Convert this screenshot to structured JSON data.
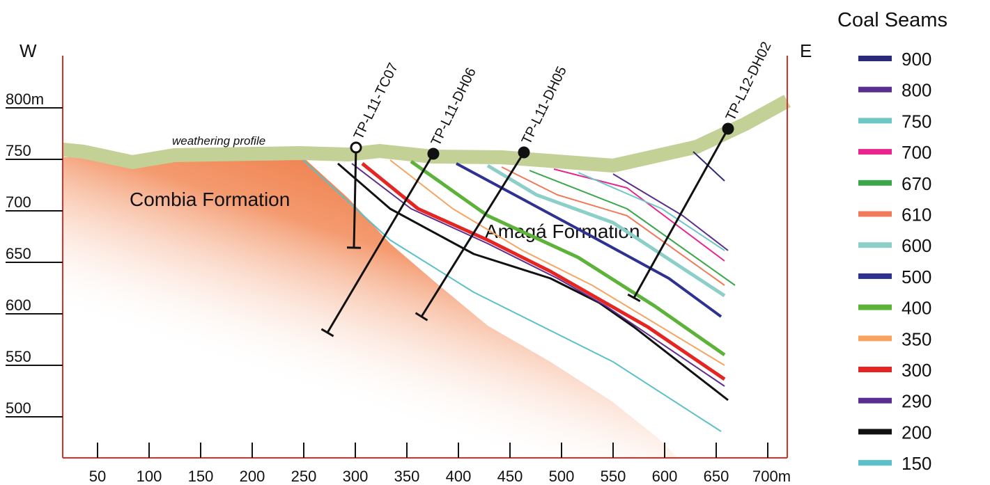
{
  "header": {
    "title": "Coal Seams"
  },
  "legend": [
    {
      "label": "900",
      "color": "#2b2a78"
    },
    {
      "label": "800",
      "color": "#5a2d91"
    },
    {
      "label": "750",
      "color": "#6ec6c6"
    },
    {
      "label": "700",
      "color": "#e8258f"
    },
    {
      "label": "670",
      "color": "#3aa74b"
    },
    {
      "label": "610",
      "color": "#f07a5a"
    },
    {
      "label": "600",
      "color": "#8ccfc8"
    },
    {
      "label": "500",
      "color": "#2e3192"
    },
    {
      "label": "400",
      "color": "#5db33a"
    },
    {
      "label": "350",
      "color": "#f7a462"
    },
    {
      "label": "300",
      "color": "#e52521"
    },
    {
      "label": "290",
      "color": "#5b2d8e"
    },
    {
      "label": "200",
      "color": "#111111"
    },
    {
      "label": "150",
      "color": "#5bc0c8"
    }
  ],
  "axes": {
    "west": "W",
    "east": "E",
    "x_ticks": [
      "50",
      "100",
      "150",
      "200",
      "250",
      "300",
      "350",
      "400",
      "450",
      "500",
      "550",
      "600",
      "650",
      "700m"
    ],
    "y_ticks": [
      "800m",
      "750",
      "700",
      "650",
      "600",
      "550",
      "500"
    ]
  },
  "labels": {
    "weathering": "weathering profile",
    "combia": "Combia Formation",
    "amaga": "Amagá Formation"
  },
  "boreholes": [
    {
      "label": "TP-L11-TC07"
    },
    {
      "label": "TP-L11-DH06"
    },
    {
      "label": "TP-L11-DH05"
    },
    {
      "label": "TP-L12-DH02"
    }
  ]
}
